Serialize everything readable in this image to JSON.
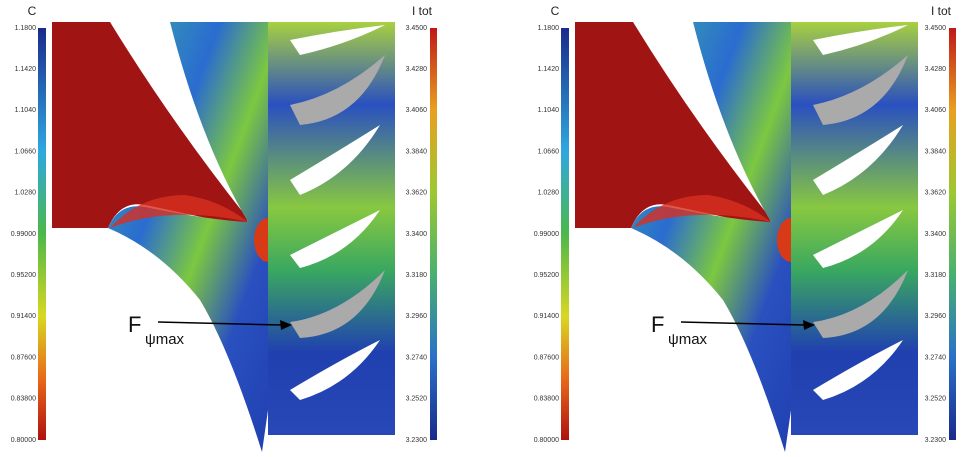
{
  "panels": [
    {
      "left_scale": {
        "label": "C",
        "ticks": [
          "1.1800",
          "1.1420",
          "1.1040",
          "1.0660",
          "1.0280",
          "0.99000",
          "0.95200",
          "0.91400",
          "0.87600",
          "0.83800",
          "0.80000"
        ]
      },
      "right_scale": {
        "label": "I tot",
        "ticks": [
          "3.4500",
          "3.4280",
          "3.4060",
          "3.3840",
          "3.3620",
          "3.3400",
          "3.3180",
          "3.2960",
          "3.2740",
          "3.2520",
          "3.2300"
        ]
      },
      "annotation": {
        "main": "F",
        "subscript": "ψmax"
      }
    },
    {
      "left_scale": {
        "label": "C",
        "ticks": [
          "1.1800",
          "1.1420",
          "1.1040",
          "1.0660",
          "1.0280",
          "0.99000",
          "0.95200",
          "0.91400",
          "0.87600",
          "0.83800",
          "0.80000"
        ]
      },
      "right_scale": {
        "label": "I tot",
        "ticks": [
          "3.4500",
          "3.4280",
          "3.4060",
          "3.3840",
          "3.3620",
          "3.3400",
          "3.3180",
          "3.2960",
          "3.2740",
          "3.2520",
          "3.2300"
        ]
      },
      "annotation": {
        "main": "F",
        "subscript": "ψmax"
      }
    }
  ]
}
